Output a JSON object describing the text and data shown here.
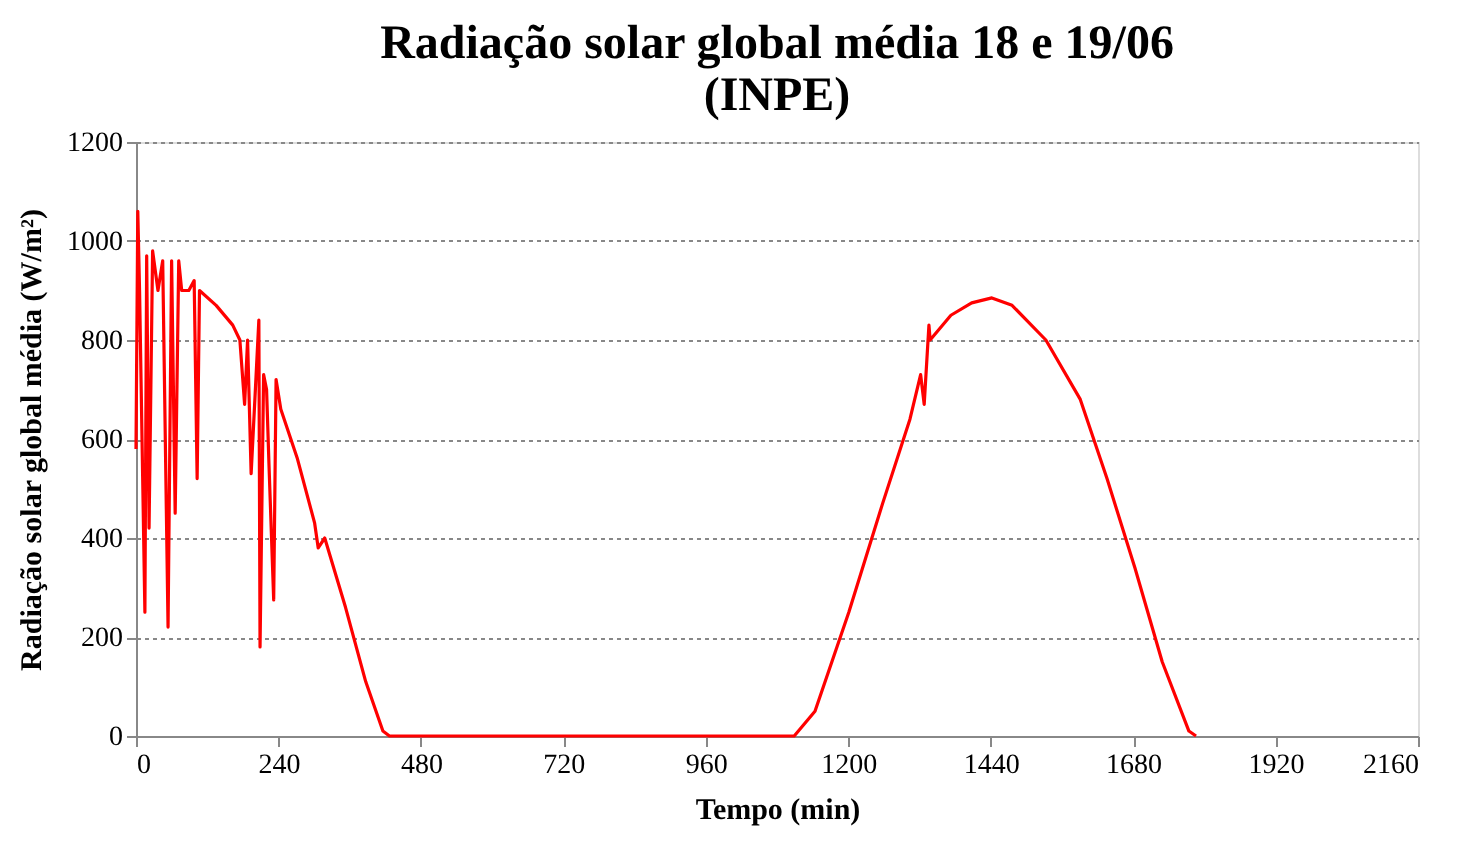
{
  "chart_data": {
    "type": "line",
    "title": [
      "Radiação solar global média 18 e 19/06",
      "(INPE)"
    ],
    "xlabel": "Tempo (min)",
    "ylabel": "Radiação solar global média (W/m²)",
    "series": [
      {
        "color": "#ff0000",
        "x": [
          0,
          3,
          6,
          15,
          18,
          22,
          28,
          37,
          45,
          54,
          60,
          66,
          72,
          77,
          89,
          98,
          103,
          107,
          135,
          163,
          175,
          183,
          188,
          194,
          207,
          209,
          215,
          220,
          224,
          232,
          236,
          244,
          272,
          301,
          307,
          318,
          353,
          387,
          416,
          427,
          1109,
          1144,
          1201,
          1258,
          1304,
          1322,
          1328,
          1336,
          1338,
          1373,
          1408,
          1442,
          1476,
          1533,
          1591,
          1636,
          1683,
          1729,
          1774,
          1786
        ],
        "values": [
          580,
          1060,
          900,
          250,
          970,
          420,
          980,
          900,
          960,
          220,
          960,
          450,
          960,
          900,
          900,
          920,
          520,
          900,
          870,
          830,
          800,
          670,
          800,
          530,
          840,
          180,
          730,
          700,
          550,
          275,
          720,
          660,
          560,
          430,
          380,
          400,
          260,
          110,
          10,
          0,
          0,
          50,
          250,
          470,
          640,
          730,
          670,
          830,
          800,
          850,
          875,
          885,
          870,
          800,
          680,
          520,
          340,
          150,
          10,
          0
        ]
      }
    ],
    "xlim": [
      0,
      2160
    ],
    "xticks": [
      0,
      240,
      480,
      720,
      960,
      1200,
      1440,
      1680,
      1920,
      2160
    ],
    "ylim": [
      0,
      1200
    ],
    "yticks": [
      0,
      200,
      400,
      600,
      800,
      1000,
      1200
    ],
    "grid": "y",
    "marker": "none",
    "line_style": "solid"
  }
}
